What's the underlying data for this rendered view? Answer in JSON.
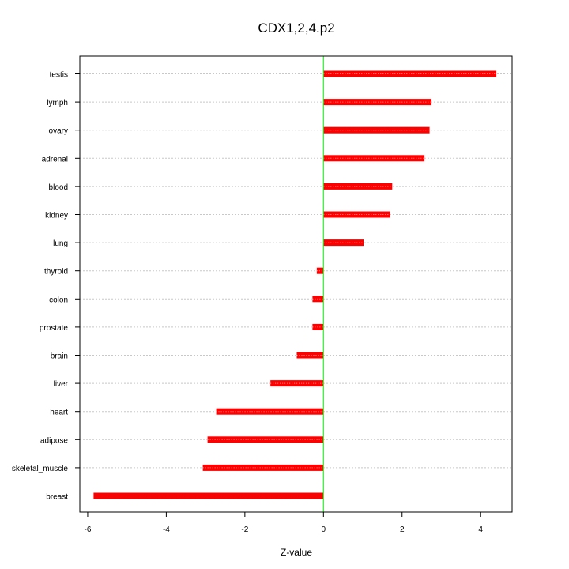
{
  "chart_data": {
    "type": "bar",
    "orientation": "horizontal",
    "title": "CDX1,2,4.p2",
    "xlabel": "Z-value",
    "ylabel": "",
    "xlim": [
      -6.2,
      4.8
    ],
    "xticks": [
      -6,
      -4,
      -2,
      0,
      2,
      4
    ],
    "xtick_labels": [
      "-6",
      "-4",
      "-2",
      "0",
      "2",
      "4"
    ],
    "categories": [
      "testis",
      "lymph",
      "ovary",
      "adrenal",
      "blood",
      "kidney",
      "lung",
      "thyroid",
      "colon",
      "prostate",
      "brain",
      "liver",
      "heart",
      "adipose",
      "skeletal_muscle",
      "breast"
    ],
    "values": [
      4.4,
      2.75,
      2.7,
      2.57,
      1.75,
      1.7,
      1.02,
      -0.17,
      -0.28,
      -0.28,
      -0.68,
      -1.35,
      -2.73,
      -2.95,
      -3.07,
      -5.85
    ],
    "grid": "horizontal dotted",
    "bar_color": "#ff0000",
    "zero_line_color": "#00ff00"
  }
}
